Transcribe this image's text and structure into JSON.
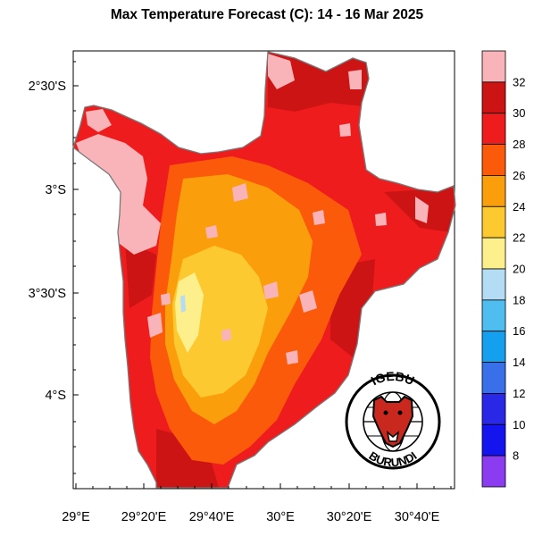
{
  "title": "Max Temperature Forecast (C): 14 - 16 Mar 2025",
  "y_ticks": [
    "2°30'S",
    "3°S",
    "3°30'S",
    "4°S"
  ],
  "x_ticks": [
    "29°E",
    "29°20'E",
    "29°40'E",
    "30°E",
    "30°20'E",
    "30°40'E"
  ],
  "colorbar": {
    "labels": [
      "32",
      "30",
      "28",
      "26",
      "24",
      "22",
      "20",
      "18",
      "16",
      "14",
      "12",
      "10",
      "8"
    ],
    "colors": [
      "#f8b4b8",
      "#cc1414",
      "#ee1c1c",
      "#fb5a0a",
      "#fb9e0c",
      "#fcc930",
      "#fdf08c",
      "#b4dcf4",
      "#4fbdf0",
      "#14a0ee",
      "#3a6fea",
      "#2828e6",
      "#1414ee",
      "#8c3cf0"
    ]
  },
  "logo": {
    "top_text": "IGEBU",
    "bottom_text": "BURUNDI"
  }
}
